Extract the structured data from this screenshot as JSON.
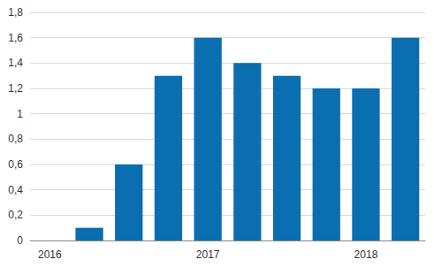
{
  "chart_data": {
    "type": "bar",
    "categories": [
      "2016",
      null,
      null,
      null,
      "2017",
      null,
      null,
      null,
      "2018",
      null
    ],
    "values": [
      0,
      0.1,
      0.6,
      1.3,
      1.6,
      1.4,
      1.3,
      1.2,
      1.2,
      1.6
    ],
    "color": "#0a6eb0",
    "ylim": [
      0,
      1.8
    ],
    "yticks": [
      0,
      {
        "value": 0.2,
        "label": "0,2"
      },
      {
        "value": 0.4,
        "label": "0,4"
      },
      {
        "value": 0.6,
        "label": "0,6"
      },
      {
        "value": 0.8,
        "label": "0,8"
      },
      1,
      {
        "value": 1.2,
        "label": "1,2"
      },
      {
        "value": 1.4,
        "label": "1,4"
      },
      {
        "value": 1.6,
        "label": "1,6"
      },
      {
        "value": 1.8,
        "label": "1,8"
      }
    ],
    "grid": true
  }
}
